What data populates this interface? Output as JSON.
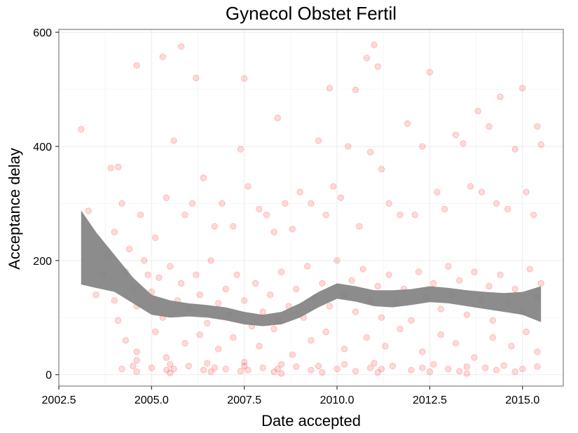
{
  "chart_data": {
    "type": "scatter",
    "title": "Gynecol Obstet Fertil",
    "xlabel": "Date accepted",
    "ylabel": "Acceptance delay",
    "xlim": [
      2002.5,
      2016.1
    ],
    "ylim": [
      -20,
      605
    ],
    "x_ticks": [
      {
        "value": 2002.5,
        "label": "2002.5"
      },
      {
        "value": 2005.0,
        "label": "2005.0"
      },
      {
        "value": 2007.5,
        "label": "2007.5"
      },
      {
        "value": 2010.0,
        "label": "2010.0"
      },
      {
        "value": 2012.5,
        "label": "2012.5"
      },
      {
        "value": 2015.0,
        "label": "2015.0"
      }
    ],
    "y_ticks": [
      {
        "value": 0,
        "label": "0"
      },
      {
        "value": 200,
        "label": "200"
      },
      {
        "value": 400,
        "label": "400"
      },
      {
        "value": 600,
        "label": "600"
      }
    ],
    "grid": true,
    "point_color": "#ff0000",
    "band_color": "#808080",
    "points": [
      [
        2003.1,
        430
      ],
      [
        2003.9,
        362
      ],
      [
        2004.1,
        364
      ],
      [
        2004.6,
        542
      ],
      [
        2005.3,
        557
      ],
      [
        2005.8,
        575
      ],
      [
        2006.2,
        520
      ],
      [
        2007.5,
        519
      ],
      [
        2008.4,
        450
      ],
      [
        2009.8,
        502
      ],
      [
        2010.5,
        499
      ],
      [
        2010.8,
        555
      ],
      [
        2011.0,
        578
      ],
      [
        2011.1,
        540
      ],
      [
        2012.5,
        530
      ],
      [
        2013.8,
        462
      ],
      [
        2014.4,
        487
      ],
      [
        2015.0,
        502
      ],
      [
        2015.4,
        435
      ],
      [
        2015.5,
        403
      ],
      [
        2003.3,
        287
      ],
      [
        2003.7,
        175
      ],
      [
        2004.0,
        250
      ],
      [
        2004.2,
        300
      ],
      [
        2004.4,
        220
      ],
      [
        2004.7,
        280
      ],
      [
        2004.9,
        175
      ],
      [
        2005.1,
        240
      ],
      [
        2005.4,
        310
      ],
      [
        2005.6,
        410
      ],
      [
        2005.9,
        280
      ],
      [
        2006.1,
        300
      ],
      [
        2006.4,
        345
      ],
      [
        2006.7,
        260
      ],
      [
        2006.9,
        300
      ],
      [
        2007.2,
        260
      ],
      [
        2007.4,
        395
      ],
      [
        2007.6,
        330
      ],
      [
        2007.9,
        290
      ],
      [
        2008.1,
        280
      ],
      [
        2008.3,
        250
      ],
      [
        2008.6,
        300
      ],
      [
        2008.8,
        255
      ],
      [
        2009.0,
        320
      ],
      [
        2009.3,
        300
      ],
      [
        2009.5,
        410
      ],
      [
        2009.7,
        280
      ],
      [
        2009.9,
        330
      ],
      [
        2010.1,
        310
      ],
      [
        2010.3,
        400
      ],
      [
        2010.6,
        260
      ],
      [
        2010.9,
        390
      ],
      [
        2011.2,
        360
      ],
      [
        2011.4,
        300
      ],
      [
        2011.7,
        280
      ],
      [
        2011.9,
        440
      ],
      [
        2012.1,
        280
      ],
      [
        2012.3,
        400
      ],
      [
        2012.7,
        320
      ],
      [
        2012.9,
        290
      ],
      [
        2013.2,
        420
      ],
      [
        2013.4,
        405
      ],
      [
        2013.6,
        330
      ],
      [
        2013.9,
        320
      ],
      [
        2014.1,
        435
      ],
      [
        2014.3,
        300
      ],
      [
        2014.6,
        290
      ],
      [
        2014.8,
        395
      ],
      [
        2015.1,
        320
      ],
      [
        2015.3,
        280
      ],
      [
        2003.5,
        140
      ],
      [
        2003.8,
        210
      ],
      [
        2004.0,
        130
      ],
      [
        2004.1,
        95
      ],
      [
        2004.3,
        180
      ],
      [
        2004.5,
        150
      ],
      [
        2004.6,
        120
      ],
      [
        2004.8,
        200
      ],
      [
        2005.0,
        145
      ],
      [
        2005.2,
        170
      ],
      [
        2005.3,
        100
      ],
      [
        2005.5,
        190
      ],
      [
        2005.7,
        130
      ],
      [
        2005.8,
        160
      ],
      [
        2006.0,
        115
      ],
      [
        2006.2,
        175
      ],
      [
        2006.3,
        140
      ],
      [
        2006.5,
        90
      ],
      [
        2006.6,
        200
      ],
      [
        2006.8,
        125
      ],
      [
        2007.0,
        150
      ],
      [
        2007.1,
        105
      ],
      [
        2007.3,
        175
      ],
      [
        2007.5,
        130
      ],
      [
        2007.7,
        85
      ],
      [
        2007.8,
        160
      ],
      [
        2008.0,
        110
      ],
      [
        2008.2,
        140
      ],
      [
        2008.4,
        95
      ],
      [
        2008.5,
        180
      ],
      [
        2008.7,
        120
      ],
      [
        2008.9,
        150
      ],
      [
        2009.1,
        100
      ],
      [
        2009.2,
        190
      ],
      [
        2009.4,
        135
      ],
      [
        2009.6,
        160
      ],
      [
        2009.8,
        120
      ],
      [
        2010.0,
        200
      ],
      [
        2010.2,
        140
      ],
      [
        2010.4,
        165
      ],
      [
        2010.5,
        110
      ],
      [
        2010.7,
        185
      ],
      [
        2010.9,
        130
      ],
      [
        2011.1,
        155
      ],
      [
        2011.2,
        100
      ],
      [
        2011.4,
        175
      ],
      [
        2011.6,
        125
      ],
      [
        2011.8,
        150
      ],
      [
        2012.0,
        95
      ],
      [
        2012.2,
        180
      ],
      [
        2012.4,
        135
      ],
      [
        2012.6,
        160
      ],
      [
        2012.8,
        115
      ],
      [
        2013.0,
        190
      ],
      [
        2013.1,
        140
      ],
      [
        2013.3,
        165
      ],
      [
        2013.5,
        105
      ],
      [
        2013.7,
        180
      ],
      [
        2013.9,
        130
      ],
      [
        2014.1,
        155
      ],
      [
        2014.2,
        95
      ],
      [
        2014.4,
        175
      ],
      [
        2014.6,
        125
      ],
      [
        2014.8,
        150
      ],
      [
        2015.0,
        110
      ],
      [
        2015.2,
        185
      ],
      [
        2015.4,
        135
      ],
      [
        2015.5,
        160
      ],
      [
        2004.3,
        60
      ],
      [
        2004.6,
        40
      ],
      [
        2005.1,
        75
      ],
      [
        2005.4,
        30
      ],
      [
        2005.9,
        55
      ],
      [
        2006.3,
        70
      ],
      [
        2006.8,
        45
      ],
      [
        2007.2,
        65
      ],
      [
        2007.9,
        50
      ],
      [
        2008.3,
        80
      ],
      [
        2008.8,
        35
      ],
      [
        2009.3,
        60
      ],
      [
        2009.7,
        75
      ],
      [
        2010.2,
        45
      ],
      [
        2010.8,
        65
      ],
      [
        2011.3,
        50
      ],
      [
        2011.7,
        80
      ],
      [
        2012.3,
        40
      ],
      [
        2012.8,
        70
      ],
      [
        2013.2,
        55
      ],
      [
        2013.7,
        30
      ],
      [
        2014.2,
        65
      ],
      [
        2014.7,
        50
      ],
      [
        2015.1,
        75
      ],
      [
        2015.4,
        40
      ],
      [
        2004.2,
        10
      ],
      [
        2004.5,
        15
      ],
      [
        2004.6,
        25
      ],
      [
        2004.6,
        5
      ],
      [
        2005.0,
        12
      ],
      [
        2005.4,
        8
      ],
      [
        2005.5,
        18
      ],
      [
        2005.5,
        3
      ],
      [
        2005.6,
        10
      ],
      [
        2006.0,
        15
      ],
      [
        2006.4,
        8
      ],
      [
        2006.5,
        20
      ],
      [
        2006.6,
        5
      ],
      [
        2006.7,
        12
      ],
      [
        2007.0,
        10
      ],
      [
        2007.4,
        6
      ],
      [
        2007.5,
        15
      ],
      [
        2007.5,
        22
      ],
      [
        2007.6,
        8
      ],
      [
        2008.0,
        12
      ],
      [
        2008.3,
        5
      ],
      [
        2008.4,
        10
      ],
      [
        2008.5,
        18
      ],
      [
        2008.5,
        2
      ],
      [
        2008.9,
        14
      ],
      [
        2009.3,
        8
      ],
      [
        2009.5,
        15
      ],
      [
        2009.6,
        4
      ],
      [
        2010.0,
        10
      ],
      [
        2010.2,
        18
      ],
      [
        2010.5,
        6
      ],
      [
        2010.9,
        12
      ],
      [
        2011.0,
        20
      ],
      [
        2011.1,
        4
      ],
      [
        2011.2,
        10
      ],
      [
        2011.5,
        15
      ],
      [
        2012.0,
        8
      ],
      [
        2012.3,
        12
      ],
      [
        2012.5,
        5
      ],
      [
        2012.6,
        18
      ],
      [
        2013.0,
        10
      ],
      [
        2013.3,
        6
      ],
      [
        2013.5,
        14
      ],
      [
        2013.5,
        2
      ],
      [
        2014.0,
        12
      ],
      [
        2014.3,
        8
      ],
      [
        2014.5,
        16
      ],
      [
        2014.8,
        5
      ],
      [
        2015.0,
        10
      ],
      [
        2015.4,
        14
      ]
    ],
    "band_x": [
      2003.1,
      2003.5,
      2004.0,
      2004.5,
      2005.0,
      2005.5,
      2006.0,
      2006.5,
      2007.0,
      2007.5,
      2008.0,
      2008.5,
      2009.0,
      2009.5,
      2010.0,
      2010.5,
      2011.0,
      2011.5,
      2012.0,
      2012.5,
      2013.0,
      2013.5,
      2014.0,
      2014.5,
      2015.0,
      2015.5
    ],
    "band_upper": [
      288,
      250,
      210,
      170,
      140,
      130,
      125,
      122,
      118,
      110,
      105,
      110,
      125,
      145,
      160,
      155,
      148,
      148,
      150,
      155,
      152,
      148,
      145,
      143,
      145,
      155
    ],
    "band_lower": [
      158,
      152,
      145,
      125,
      105,
      100,
      102,
      100,
      95,
      88,
      85,
      88,
      100,
      118,
      133,
      128,
      120,
      118,
      122,
      127,
      125,
      120,
      115,
      110,
      105,
      92
    ]
  }
}
